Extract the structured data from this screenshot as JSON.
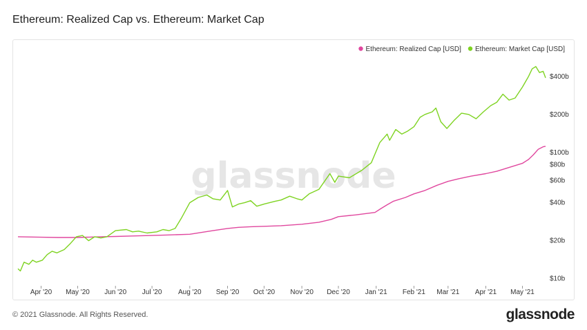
{
  "chart_data": {
    "type": "line",
    "title": "Ethereum: Realized Cap vs. Ethereum: Market Cap",
    "y_scale": "log",
    "y_unit": "USD",
    "ylim": [
      9,
      520
    ],
    "y_ticks": [
      {
        "value": 10,
        "label": "$10b"
      },
      {
        "value": 20,
        "label": "$20b"
      },
      {
        "value": 40,
        "label": "$40b"
      },
      {
        "value": 60,
        "label": "$60b"
      },
      {
        "value": 80,
        "label": "$80b"
      },
      {
        "value": 100,
        "label": "$100b"
      },
      {
        "value": 200,
        "label": "$200b"
      },
      {
        "value": 400,
        "label": "$400b"
      }
    ],
    "x_ticks": [
      "Apr '20",
      "May '20",
      "Jun '20",
      "Jul '20",
      "Aug '20",
      "Sep '20",
      "Oct '20",
      "Nov '20",
      "Dec '20",
      "Jan '21",
      "Feb '21",
      "Mar '21",
      "Apr '21",
      "May '21"
    ],
    "legend_position": "top-right",
    "grid": false,
    "series": [
      {
        "name": "Ethereum: Realized Cap [USD]",
        "color": "#e0479e",
        "points": [
          [
            "2020-03-13",
            21.5
          ],
          [
            "2020-03-20",
            21.4
          ],
          [
            "2020-04-01",
            21.3
          ],
          [
            "2020-04-15",
            21.2
          ],
          [
            "2020-05-01",
            21.2
          ],
          [
            "2020-05-15",
            21.4
          ],
          [
            "2020-06-01",
            21.6
          ],
          [
            "2020-06-15",
            21.8
          ],
          [
            "2020-07-01",
            22.0
          ],
          [
            "2020-07-15",
            22.2
          ],
          [
            "2020-08-01",
            22.5
          ],
          [
            "2020-08-10",
            23.2
          ],
          [
            "2020-08-20",
            24.0
          ],
          [
            "2020-09-01",
            25.0
          ],
          [
            "2020-09-10",
            25.5
          ],
          [
            "2020-09-20",
            25.8
          ],
          [
            "2020-10-01",
            26.0
          ],
          [
            "2020-10-15",
            26.3
          ],
          [
            "2020-11-01",
            27.0
          ],
          [
            "2020-11-15",
            28.0
          ],
          [
            "2020-11-25",
            29.5
          ],
          [
            "2020-12-01",
            31.0
          ],
          [
            "2020-12-15",
            32.0
          ],
          [
            "2020-12-31",
            33.5
          ],
          [
            "2021-01-05",
            36.0
          ],
          [
            "2021-01-10",
            38.5
          ],
          [
            "2021-01-15",
            41.0
          ],
          [
            "2021-01-25",
            44.0
          ],
          [
            "2021-02-01",
            47.0
          ],
          [
            "2021-02-10",
            50.0
          ],
          [
            "2021-02-20",
            55.0
          ],
          [
            "2021-03-01",
            59.0
          ],
          [
            "2021-03-10",
            62.0
          ],
          [
            "2021-03-20",
            65.0
          ],
          [
            "2021-04-01",
            68.0
          ],
          [
            "2021-04-10",
            71.0
          ],
          [
            "2021-04-20",
            76.0
          ],
          [
            "2021-05-01",
            82.0
          ],
          [
            "2021-05-06",
            88.0
          ],
          [
            "2021-05-10",
            96.0
          ],
          [
            "2021-05-14",
            106.0
          ],
          [
            "2021-05-18",
            111.0
          ],
          [
            "2021-05-20",
            112.0
          ]
        ]
      },
      {
        "name": "Ethereum: Market Cap [USD]",
        "color": "#7ed321",
        "points": [
          [
            "2020-03-13",
            12.0
          ],
          [
            "2020-03-15",
            11.5
          ],
          [
            "2020-03-18",
            13.5
          ],
          [
            "2020-03-22",
            13.0
          ],
          [
            "2020-03-25",
            14.0
          ],
          [
            "2020-03-28",
            13.5
          ],
          [
            "2020-04-02",
            14.0
          ],
          [
            "2020-04-06",
            15.5
          ],
          [
            "2020-04-10",
            16.5
          ],
          [
            "2020-04-14",
            16.0
          ],
          [
            "2020-04-20",
            17.0
          ],
          [
            "2020-04-25",
            19.0
          ],
          [
            "2020-04-30",
            21.5
          ],
          [
            "2020-05-05",
            22.0
          ],
          [
            "2020-05-10",
            20.0
          ],
          [
            "2020-05-15",
            21.5
          ],
          [
            "2020-05-20",
            21.0
          ],
          [
            "2020-05-25",
            21.5
          ],
          [
            "2020-06-01",
            24.0
          ],
          [
            "2020-06-10",
            24.5
          ],
          [
            "2020-06-15",
            23.5
          ],
          [
            "2020-06-20",
            23.8
          ],
          [
            "2020-06-27",
            23.0
          ],
          [
            "2020-07-05",
            23.5
          ],
          [
            "2020-07-10",
            24.5
          ],
          [
            "2020-07-15",
            24.0
          ],
          [
            "2020-07-20",
            25.0
          ],
          [
            "2020-07-25",
            30.0
          ],
          [
            "2020-08-01",
            40.0
          ],
          [
            "2020-08-08",
            44.0
          ],
          [
            "2020-08-15",
            46.0
          ],
          [
            "2020-08-20",
            43.0
          ],
          [
            "2020-08-26",
            42.0
          ],
          [
            "2020-09-01",
            50.0
          ],
          [
            "2020-09-05",
            37.0
          ],
          [
            "2020-09-10",
            39.0
          ],
          [
            "2020-09-15",
            40.0
          ],
          [
            "2020-09-20",
            41.5
          ],
          [
            "2020-09-25",
            37.5
          ],
          [
            "2020-10-01",
            39.0
          ],
          [
            "2020-10-10",
            41.0
          ],
          [
            "2020-10-15",
            42.0
          ],
          [
            "2020-10-22",
            45.0
          ],
          [
            "2020-10-28",
            43.0
          ],
          [
            "2020-11-01",
            42.0
          ],
          [
            "2020-11-07",
            47.0
          ],
          [
            "2020-11-15",
            51.0
          ],
          [
            "2020-11-24",
            68.0
          ],
          [
            "2020-11-28",
            58.0
          ],
          [
            "2020-12-01",
            65.0
          ],
          [
            "2020-12-10",
            63.0
          ],
          [
            "2020-12-20",
            72.0
          ],
          [
            "2020-12-28",
            83.0
          ],
          [
            "2021-01-04",
            120.0
          ],
          [
            "2021-01-10",
            140.0
          ],
          [
            "2021-01-12",
            125.0
          ],
          [
            "2021-01-17",
            152.0
          ],
          [
            "2021-01-22",
            140.0
          ],
          [
            "2021-01-27",
            148.0
          ],
          [
            "2021-02-01",
            160.0
          ],
          [
            "2021-02-06",
            190.0
          ],
          [
            "2021-02-10",
            200.0
          ],
          [
            "2021-02-16",
            210.0
          ],
          [
            "2021-02-19",
            225.0
          ],
          [
            "2021-02-23",
            175.0
          ],
          [
            "2021-02-28",
            155.0
          ],
          [
            "2021-03-06",
            180.0
          ],
          [
            "2021-03-12",
            205.0
          ],
          [
            "2021-03-18",
            200.0
          ],
          [
            "2021-03-24",
            185.0
          ],
          [
            "2021-03-30",
            210.0
          ],
          [
            "2021-04-05",
            235.0
          ],
          [
            "2021-04-10",
            250.0
          ],
          [
            "2021-04-15",
            290.0
          ],
          [
            "2021-04-20",
            260.0
          ],
          [
            "2021-04-25",
            270.0
          ],
          [
            "2021-05-01",
            330.0
          ],
          [
            "2021-05-06",
            400.0
          ],
          [
            "2021-05-09",
            460.0
          ],
          [
            "2021-05-12",
            480.0
          ],
          [
            "2021-05-15",
            430.0
          ],
          [
            "2021-05-18",
            440.0
          ],
          [
            "2021-05-20",
            390.0
          ]
        ]
      }
    ]
  },
  "watermark": "glassnode",
  "footer": {
    "copyright": "© 2021 Glassnode. All Rights Reserved.",
    "brand": "glassnode"
  }
}
